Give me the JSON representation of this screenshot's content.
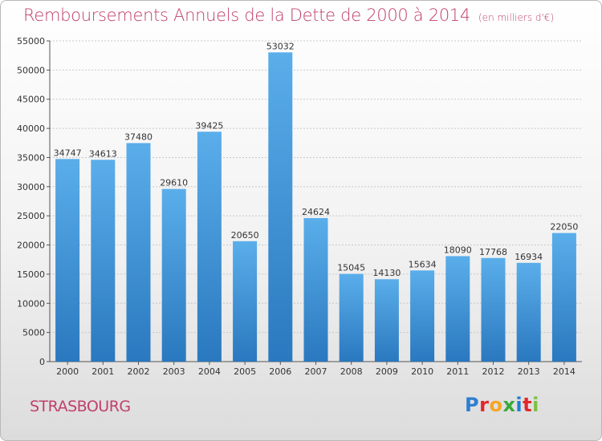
{
  "header": {
    "title": "Remboursements Annuels de la Dette de 2000 à 2014",
    "unit": "(en milliers d'€)"
  },
  "footer": {
    "city": "STRASBOURG",
    "logo_letters": [
      "P",
      "r",
      "o",
      "x",
      "i",
      "t",
      "i"
    ]
  },
  "colors": {
    "title": "#c0406a",
    "bar_top": "#5aaeea",
    "bar_bottom": "#2a78bf",
    "grid": "#c8c8c8"
  },
  "chart_data": {
    "type": "bar",
    "title": "Remboursements Annuels de la Dette de 2000 à 2014",
    "xlabel": "",
    "ylabel": "",
    "categories": [
      "2000",
      "2001",
      "2002",
      "2003",
      "2004",
      "2005",
      "2006",
      "2007",
      "2008",
      "2009",
      "2010",
      "2011",
      "2012",
      "2013",
      "2014"
    ],
    "values": [
      34747,
      34613,
      37480,
      29610,
      39425,
      20650,
      53032,
      24624,
      15045,
      14130,
      15634,
      18090,
      17768,
      16934,
      22050
    ],
    "ylim": [
      0,
      55000
    ],
    "yticks": [
      0,
      5000,
      10000,
      15000,
      20000,
      25000,
      30000,
      35000,
      40000,
      45000,
      50000,
      55000
    ],
    "grid": true,
    "legend": "none"
  }
}
